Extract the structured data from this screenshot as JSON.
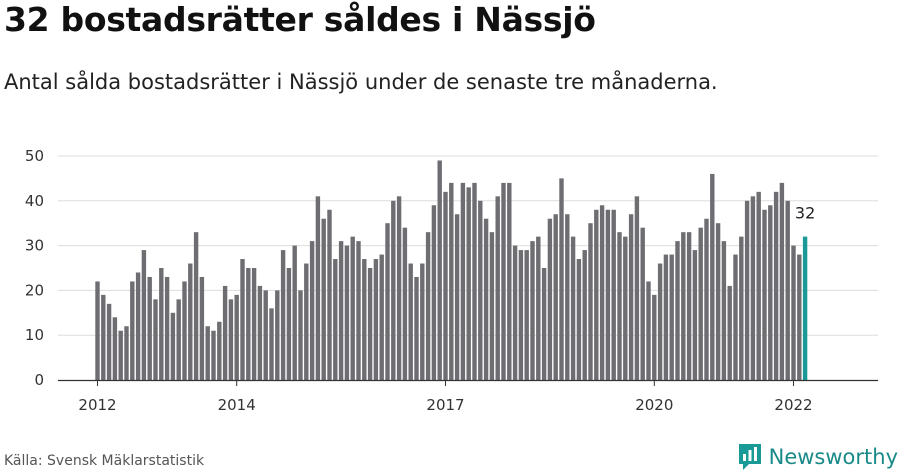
{
  "header": {
    "title": "32 bostadsrätter såldes i Nässjö",
    "subtitle": "Antal sålda bostadsrätter i Nässjö under de senaste tre månaderna."
  },
  "footer": {
    "source": "Källa: Svensk Mäklarstatistik",
    "brand": "Newsworthy"
  },
  "colors": {
    "bar": "#6e6d72",
    "highlight": "#1a9a96",
    "grid": "#dddddd",
    "axis": "#333333"
  },
  "chart_data": {
    "type": "bar",
    "title": "32 bostadsrätter såldes i Nässjö",
    "subtitle": "Antal sålda bostadsrätter i Nässjö under de senaste tre månaderna.",
    "xlabel": "",
    "ylabel": "",
    "ylim": [
      0,
      50
    ],
    "yticks": [
      0,
      10,
      20,
      30,
      40,
      50
    ],
    "grid": true,
    "x_start": "2012-01",
    "x_interval": "month",
    "xticks": [
      {
        "label": "2012",
        "index": 0
      },
      {
        "label": "2014",
        "index": 24
      },
      {
        "label": "2017",
        "index": 60
      },
      {
        "label": "2020",
        "index": 96
      },
      {
        "label": "2022",
        "index": 120
      }
    ],
    "values": [
      22,
      19,
      17,
      14,
      11,
      12,
      22,
      24,
      29,
      23,
      18,
      25,
      23,
      15,
      18,
      22,
      26,
      33,
      23,
      12,
      11,
      13,
      21,
      18,
      19,
      27,
      25,
      25,
      21,
      20,
      16,
      20,
      29,
      25,
      30,
      20,
      26,
      31,
      41,
      36,
      38,
      27,
      31,
      30,
      32,
      31,
      27,
      25,
      27,
      28,
      35,
      40,
      41,
      34,
      26,
      23,
      26,
      33,
      39,
      49,
      42,
      44,
      37,
      44,
      43,
      44,
      40,
      36,
      33,
      41,
      44,
      44,
      30,
      29,
      29,
      31,
      32,
      25,
      36,
      37,
      45,
      37,
      32,
      27,
      29,
      35,
      38,
      39,
      38,
      38,
      33,
      32,
      37,
      41,
      34,
      22,
      19,
      26,
      28,
      28,
      31,
      33,
      33,
      29,
      34,
      36,
      46,
      35,
      31,
      21,
      28,
      32,
      40,
      41,
      42,
      38,
      39,
      42,
      44,
      40,
      30,
      28,
      32
    ],
    "highlight_index": 122,
    "highlight_label": "32"
  }
}
